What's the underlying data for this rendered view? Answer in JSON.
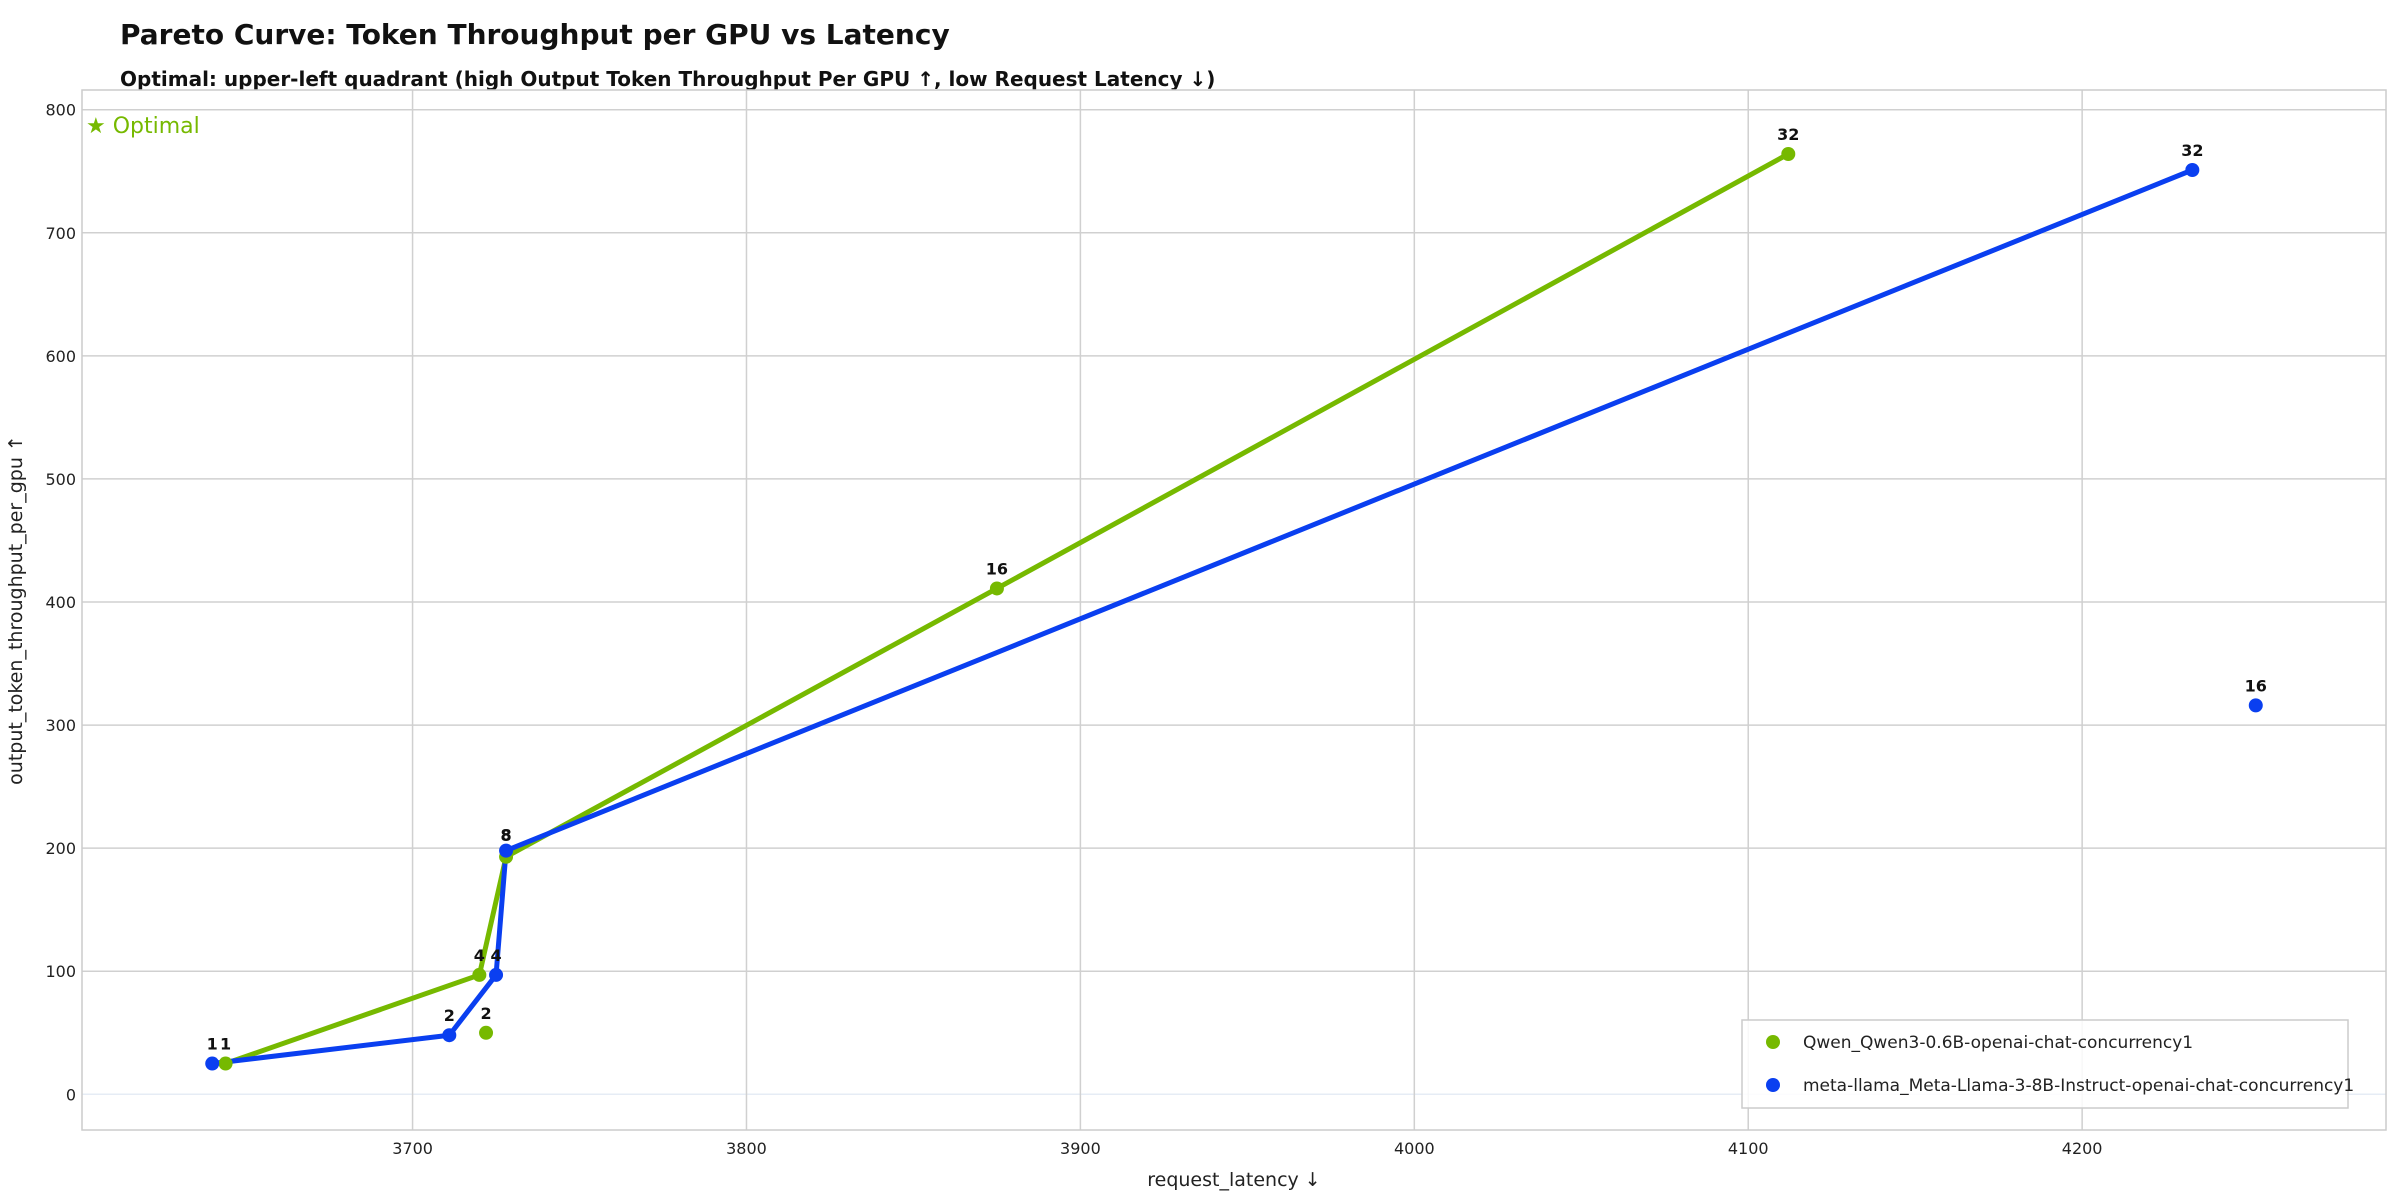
{
  "header": {
    "title": "Pareto Curve: Token Throughput per GPU vs Latency",
    "subtitle": "Optimal: upper-left quadrant (high Output Token Throughput Per GPU ↑, low Request Latency ↓)"
  },
  "annotation": {
    "optimal_label": "★ Optimal",
    "color": "#76b900"
  },
  "colors": {
    "qwen": "#76b900",
    "llama": "#0a3ff0",
    "grid": "#d0d0d0"
  },
  "chart_data": {
    "type": "line",
    "title": "Pareto Curve: Token Throughput per GPU vs Latency",
    "subtitle": "Optimal: upper-left quadrant (high Output Token Throughput Per GPU ↑, low Request Latency ↓)",
    "xlabel": "request_latency ↓",
    "ylabel": "output_token_throughput_per_gpu ↑",
    "xlim": [
      3601,
      4291
    ],
    "ylim": [
      -29,
      816
    ],
    "xticks": [
      3700,
      3800,
      3900,
      4000,
      4100,
      4200
    ],
    "yticks": [
      0,
      100,
      200,
      300,
      400,
      500,
      600,
      700,
      800
    ],
    "grid": true,
    "legend_position": "lower right",
    "annotations": [
      "★ Optimal"
    ],
    "series": [
      {
        "name": "Qwen_Qwen3-0.6B-openai-chat-concurrency1",
        "color": "#76b900",
        "points": [
          {
            "label": "1",
            "x": 3644,
            "y": 25
          },
          {
            "label": "2",
            "x": 3722,
            "y": 50
          },
          {
            "label": "4",
            "x": 3720,
            "y": 97
          },
          {
            "label": "8",
            "x": 3728,
            "y": 193
          },
          {
            "label": "16",
            "x": 3875,
            "y": 411
          },
          {
            "label": "32",
            "x": 4112,
            "y": 764
          }
        ],
        "pareto_line": [
          "1",
          "4",
          "8",
          "16",
          "32"
        ]
      },
      {
        "name": "meta-llama_Meta-Llama-3-8B-Instruct-openai-chat-concurrency1",
        "color": "#0a3ff0",
        "points": [
          {
            "label": "1",
            "x": 3640,
            "y": 25
          },
          {
            "label": "2",
            "x": 3711,
            "y": 48
          },
          {
            "label": "4",
            "x": 3725,
            "y": 97
          },
          {
            "label": "8",
            "x": 3728,
            "y": 198
          },
          {
            "label": "16",
            "x": 4252,
            "y": 316
          },
          {
            "label": "32",
            "x": 4233,
            "y": 751
          }
        ],
        "pareto_line": [
          "1",
          "2",
          "4",
          "8",
          "32"
        ]
      }
    ]
  }
}
